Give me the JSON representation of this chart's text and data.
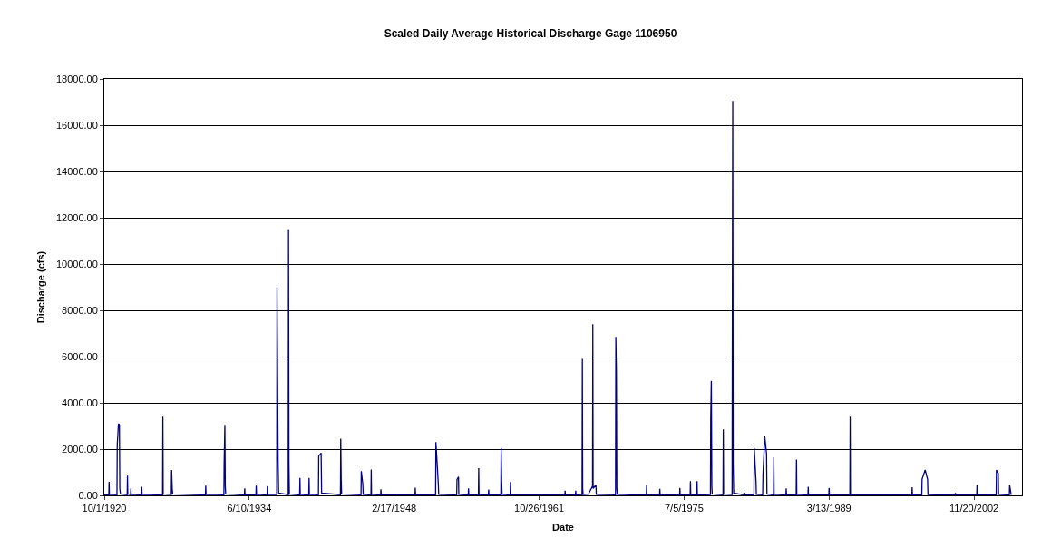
{
  "chart_data": {
    "type": "line",
    "title": "Scaled Daily Average Historical Discharge Gage 1106950",
    "xlabel": "Date",
    "ylabel": "Discharge (cfs)",
    "x": [
      "1920-10-01",
      "1921-03-05",
      "1921-03-15",
      "1921-03-25",
      "1921-12-12",
      "1921-12-22",
      "1922-02-02",
      "1922-03-06",
      "1922-03-20",
      "1922-04-10",
      "1922-11-30",
      "1922-12-10",
      "1922-12-20",
      "1923-03-28",
      "1923-04-05",
      "1923-04-15",
      "1924-04-05",
      "1924-04-15",
      "1924-04-25",
      "1926-04-04",
      "1926-04-14",
      "1926-04-24",
      "1927-01-30",
      "1927-02-09",
      "1927-03-01",
      "1927-03-20",
      "1930-04-21",
      "1930-05-01",
      "1930-05-11",
      "1932-01-17",
      "1932-01-27",
      "1932-02-20",
      "1932-03-05",
      "1932-03-20",
      "1933-12-26",
      "1934-01-05",
      "1934-01-15",
      "1935-01-26",
      "1935-02-05",
      "1935-02-15",
      "1936-02-15",
      "1936-02-25",
      "1936-03-06",
      "1937-01-13",
      "1937-01-23",
      "1937-02-12",
      "1937-03-01",
      "1937-03-20",
      "1938-02-14",
      "1938-02-24",
      "1938-03-10",
      "1938-03-25",
      "1939-03-15",
      "1939-03-25",
      "1939-04-04",
      "1940-01-24",
      "1940-02-03",
      "1940-02-13",
      "1940-12-22",
      "1941-01-01",
      "1941-03-25",
      "1941-04-10",
      "1943-01-20",
      "1943-01-30",
      "1943-02-15",
      "1943-03-01",
      "1944-12-29",
      "1945-01-08",
      "1945-03-01",
      "1945-03-15",
      "1945-12-07",
      "1945-12-17",
      "1945-12-27",
      "1946-11-06",
      "1946-11-16",
      "1946-11-26",
      "1950-02-03",
      "1950-02-13",
      "1950-02-23",
      "1952-01-16",
      "1952-01-26",
      "1952-04-18",
      "1952-05-01",
      "1954-01-12",
      "1954-01-22",
      "1954-03-15",
      "1954-03-25",
      "1955-02-14",
      "1955-02-24",
      "1955-03-06",
      "1956-01-31",
      "1956-02-10",
      "1956-02-20",
      "1957-01-09",
      "1957-01-19",
      "1957-01-29",
      "1958-03-15",
      "1958-03-25",
      "1958-04-10",
      "1958-04-25",
      "1959-01-31",
      "1959-02-10",
      "1959-02-20",
      "1964-03-30",
      "1964-04-09",
      "1964-04-19",
      "1965-03-30",
      "1965-04-09",
      "1965-04-19",
      "1965-11-14",
      "1965-11-24",
      "1965-12-05",
      "1965-12-20",
      "1966-06-20",
      "1966-11-10",
      "1966-11-20",
      "1966-11-30",
      "1967-03-07",
      "1967-03-20",
      "1969-01-12",
      "1969-01-22",
      "1969-02-10",
      "1969-02-25",
      "1969-03-15",
      "1971-12-10",
      "1971-12-20",
      "1971-12-30",
      "1973-03-10",
      "1973-03-20",
      "1973-03-30",
      "1975-01-30",
      "1975-02-09",
      "1975-02-19",
      "1976-01-30",
      "1976-02-09",
      "1976-02-19",
      "1976-09-14",
      "1976-09-24",
      "1976-10-04",
      "1977-12-29",
      "1978-01-08",
      "1978-01-29",
      "1978-02-15",
      "1978-03-01",
      "1979-03-08",
      "1979-03-18",
      "1979-03-28",
      "1980-01-15",
      "1980-01-25",
      "1980-02-06",
      "1980-02-20",
      "1980-03-10",
      "1981-02-18",
      "1981-02-28",
      "1981-03-10",
      "1982-02-07",
      "1982-02-17",
      "1982-04-20",
      "1982-05-01",
      "1982-12-05",
      "1982-12-15",
      "1983-02-15",
      "1983-04-18",
      "1983-05-01",
      "1983-12-14",
      "1983-12-24",
      "1984-01-03",
      "1985-02-14",
      "1985-02-24",
      "1985-03-06",
      "1986-02-03",
      "1986-02-13",
      "1986-02-23",
      "1987-03-15",
      "1987-03-25",
      "1987-04-04",
      "1989-03-03",
      "1989-03-13",
      "1989-03-23",
      "1991-02-28",
      "1991-03-10",
      "1991-03-20",
      "1997-01-05",
      "1997-01-15",
      "1997-01-25",
      "1997-12-14",
      "1997-12-24",
      "1998-04-08",
      "1998-07-01",
      "1998-07-15",
      "2001-02-03",
      "2001-02-13",
      "2001-02-23",
      "2003-02-21",
      "2003-03-03",
      "2003-03-13",
      "2004-12-22",
      "2005-01-01",
      "2005-03-04",
      "2005-03-15",
      "2006-03-22",
      "2006-04-01",
      "2006-05-24"
    ],
    "series": [
      {
        "color": "#000080",
        "values": [
          20,
          20,
          590,
          40,
          30,
          2200,
          3100,
          3050,
          300,
          60,
          30,
          850,
          60,
          30,
          300,
          40,
          20,
          370,
          40,
          20,
          3400,
          60,
          40,
          1100,
          300,
          60,
          20,
          420,
          40,
          30,
          1450,
          3050,
          400,
          60,
          20,
          300,
          30,
          20,
          420,
          40,
          20,
          400,
          40,
          40,
          9000,
          5100,
          1500,
          100,
          30,
          11500,
          1400,
          60,
          20,
          750,
          40,
          20,
          750,
          40,
          30,
          1700,
          1830,
          100,
          30,
          2450,
          700,
          60,
          30,
          1050,
          500,
          40,
          20,
          1120,
          40,
          20,
          260,
          30,
          20,
          330,
          30,
          20,
          2300,
          500,
          40,
          20,
          690,
          800,
          40,
          20,
          300,
          30,
          20,
          1180,
          30,
          20,
          250,
          30,
          30,
          2050,
          700,
          40,
          20,
          580,
          30,
          10,
          200,
          20,
          10,
          200,
          20,
          30,
          5900,
          300,
          40,
          50,
          400,
          7400,
          300,
          450,
          40,
          30,
          6850,
          5300,
          300,
          40,
          10,
          450,
          20,
          10,
          280,
          20,
          10,
          320,
          20,
          10,
          620,
          20,
          10,
          620,
          20,
          30,
          3300,
          4950,
          400,
          60,
          30,
          2850,
          60,
          40,
          8400,
          17050,
          1400,
          100,
          20,
          100,
          20,
          20,
          2050,
          600,
          40,
          30,
          900,
          2550,
          1800,
          60,
          20,
          1650,
          40,
          20,
          300,
          30,
          20,
          1550,
          40,
          20,
          370,
          30,
          10,
          320,
          20,
          10,
          3400,
          30,
          10,
          350,
          20,
          20,
          700,
          1100,
          700,
          30,
          10,
          100,
          10,
          10,
          450,
          20,
          20,
          1100,
          950,
          40,
          20,
          450,
          20
        ]
      }
    ],
    "xlim": [
      "1920-10-01",
      "2007-06-01"
    ],
    "xticks": [
      {
        "value": "1920-10-01",
        "label": "10/1/1920"
      },
      {
        "value": "1934-06-10",
        "label": "6/10/1934"
      },
      {
        "value": "1948-02-17",
        "label": "2/17/1948"
      },
      {
        "value": "1961-10-26",
        "label": "10/26/1961"
      },
      {
        "value": "1975-07-05",
        "label": "7/5/1975"
      },
      {
        "value": "1989-03-13",
        "label": "3/13/1989"
      },
      {
        "value": "2002-11-20",
        "label": "11/20/2002"
      }
    ],
    "ylim": [
      0,
      18000
    ],
    "yticks": [
      {
        "value": 0,
        "label": "0.00"
      },
      {
        "value": 2000,
        "label": "2000.00"
      },
      {
        "value": 4000,
        "label": "4000.00"
      },
      {
        "value": 6000,
        "label": "6000.00"
      },
      {
        "value": 8000,
        "label": "8000.00"
      },
      {
        "value": 10000,
        "label": "10000.00"
      },
      {
        "value": 12000,
        "label": "12000.00"
      },
      {
        "value": 14000,
        "label": "14000.00"
      },
      {
        "value": 16000,
        "label": "16000.00"
      },
      {
        "value": 18000,
        "label": "18000.00"
      }
    ],
    "grid": "y",
    "marker": "none",
    "line_style": "solid"
  }
}
